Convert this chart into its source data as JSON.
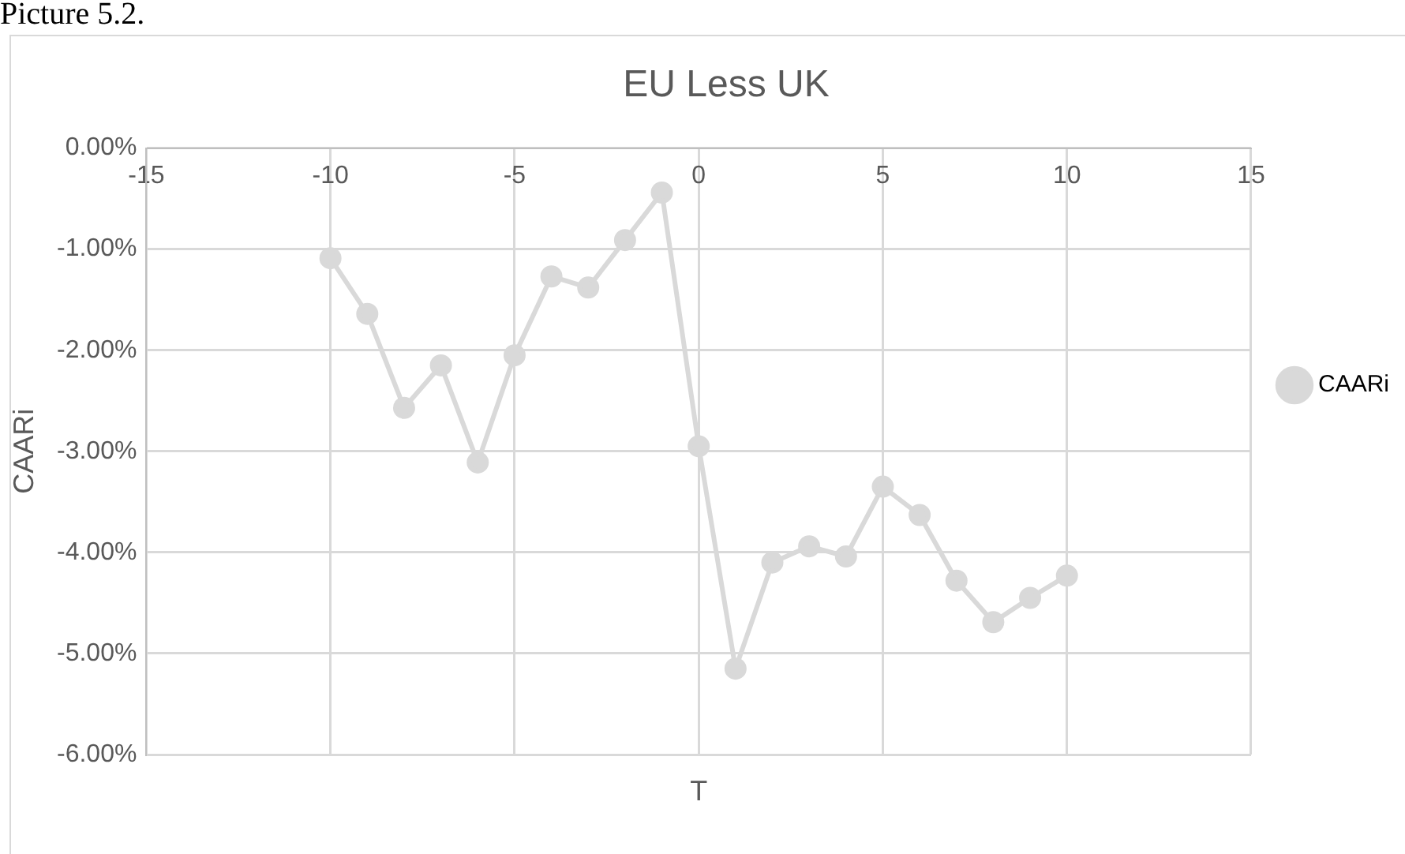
{
  "chart_data": {
    "type": "line",
    "title": "EU Less UK",
    "xlabel": "T",
    "ylabel": "CAARi",
    "annotations": [
      "Picture 5.2."
    ],
    "x": [
      -10,
      -9,
      -8,
      -7,
      -6,
      -5,
      -4,
      -3,
      -2,
      -1,
      0,
      1,
      2,
      3,
      4,
      5,
      6,
      7,
      8,
      9,
      10
    ],
    "series": [
      {
        "name": "CAARi",
        "color": "#d9d9d9",
        "values": [
          -1.09,
          -1.64,
          -2.57,
          -2.15,
          -3.11,
          -2.05,
          -1.27,
          -1.38,
          -0.91,
          -0.44,
          -2.95,
          -5.15,
          -4.1,
          -3.94,
          -4.04,
          -3.35,
          -3.63,
          -4.28,
          -4.69,
          -4.45,
          -4.23
        ]
      }
    ],
    "xlim": [
      -15,
      15
    ],
    "xticks": [
      -15,
      -10,
      -5,
      0,
      5,
      10,
      15
    ],
    "ylim": [
      -6,
      0
    ],
    "yticks": [
      {
        "value": 0,
        "label": "0.00%"
      },
      {
        "value": -1,
        "label": "-1.00%"
      },
      {
        "value": -2,
        "label": "-2.00%"
      },
      {
        "value": -3,
        "label": "-3.00%"
      },
      {
        "value": -4,
        "label": "-4.00%"
      },
      {
        "value": -5,
        "label": "-5.00%"
      },
      {
        "value": -6,
        "label": "-6.00%"
      }
    ],
    "grid": true,
    "legend": "right",
    "marker": "circle",
    "line_style": "solid"
  }
}
